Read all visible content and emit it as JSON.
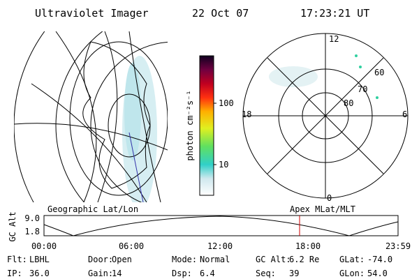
{
  "header": {
    "title": "Ultraviolet Imager",
    "date": "22 Oct 07",
    "time": "17:23:21 UT"
  },
  "colorbar": {
    "label": "photon cm⁻²s⁻¹",
    "ticks": [
      "100",
      "10"
    ]
  },
  "polar": {
    "mlt_labels": [
      "12",
      "18",
      "6",
      "0"
    ],
    "lat_labels": [
      "60",
      "70",
      "80"
    ]
  },
  "altitude": {
    "axis_label": "GC Alt",
    "yticks": [
      "9.0",
      "1.8"
    ],
    "left_title": "Geographic Lat/Lon",
    "right_title": "Apex MLat/MLT",
    "xticks": [
      "00:00",
      "06:00",
      "12:00",
      "18:00",
      "23:59"
    ]
  },
  "status": {
    "rows": [
      [
        [
          "Flt:",
          "LBHL"
        ],
        [
          "Door:",
          "Open"
        ],
        [
          "Mode:",
          "Normal"
        ],
        [
          "GC Alt:",
          "6.2 Re"
        ],
        [
          "GLat:",
          "-74.0"
        ]
      ],
      [
        [
          "IP:",
          "36.0"
        ],
        [
          "Gain:",
          "14"
        ],
        [
          "Dsp:",
          "6.4"
        ],
        [
          "Seq:",
          "39"
        ],
        [
          "GLon:",
          "54.0"
        ]
      ]
    ]
  }
}
